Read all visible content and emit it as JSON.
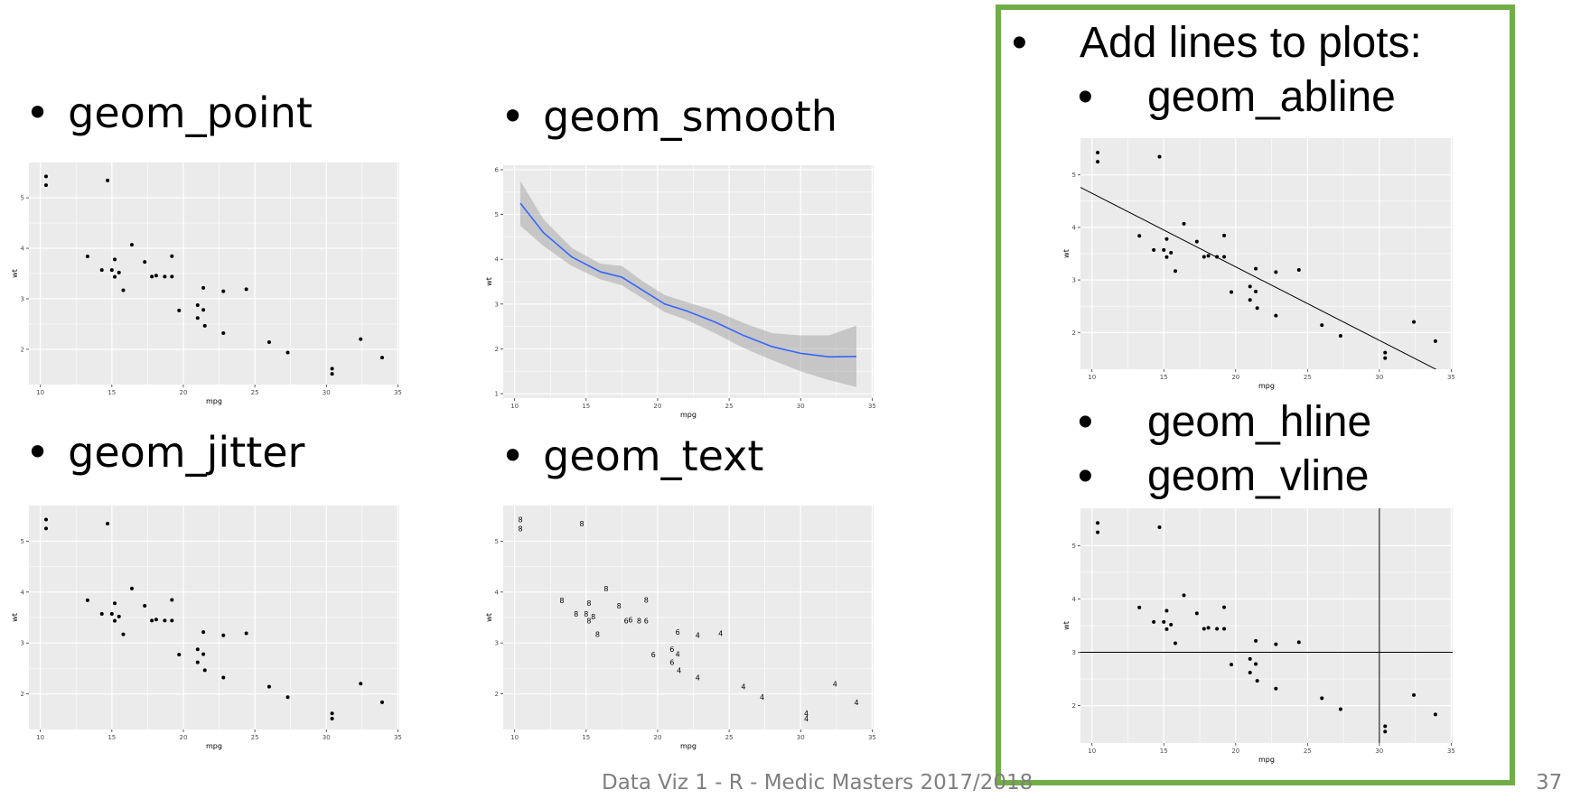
{
  "bullets": {
    "bullet_char": "•",
    "geom_point": "geom_point",
    "geom_smooth": "geom_smooth",
    "geom_jitter": "geom_jitter",
    "geom_text": "geom_text"
  },
  "box": {
    "title": "Add lines to plots:",
    "abline": "geom_abline",
    "hline": "geom_hline",
    "vline": "geom_vline"
  },
  "footer": {
    "text": "Data Viz 1 - R - Medic Masters 2017/2018",
    "page_number": "37"
  },
  "colors": {
    "panel": "#ebebeb",
    "grid": "#ffffff",
    "smooth_line": "#3366ff",
    "smooth_band": "#999999",
    "box_border": "#70ad47"
  },
  "chart_data": [
    {
      "id": "geom_point",
      "type": "scatter",
      "xlabel": "mpg",
      "ylabel": "wt",
      "xlim": [
        9.2,
        35.1
      ],
      "ylim": [
        1.3,
        5.7
      ],
      "xticks": [
        10,
        15,
        20,
        25,
        30,
        35
      ],
      "yticks": [
        2,
        3,
        4,
        5
      ],
      "points": [
        [
          21.0,
          2.62
        ],
        [
          21.0,
          2.875
        ],
        [
          22.8,
          2.32
        ],
        [
          21.4,
          3.215
        ],
        [
          18.7,
          3.44
        ],
        [
          18.1,
          3.46
        ],
        [
          14.3,
          3.57
        ],
        [
          24.4,
          3.19
        ],
        [
          22.8,
          3.15
        ],
        [
          19.2,
          3.44
        ],
        [
          17.8,
          3.44
        ],
        [
          16.4,
          4.07
        ],
        [
          17.3,
          3.73
        ],
        [
          15.2,
          3.78
        ],
        [
          10.4,
          5.25
        ],
        [
          10.4,
          5.424
        ],
        [
          14.7,
          5.345
        ],
        [
          32.4,
          2.2
        ],
        [
          30.4,
          1.615
        ],
        [
          33.9,
          1.835
        ],
        [
          21.5,
          2.465
        ],
        [
          15.5,
          3.52
        ],
        [
          15.2,
          3.435
        ],
        [
          13.3,
          3.84
        ],
        [
          19.2,
          3.845
        ],
        [
          27.3,
          1.935
        ],
        [
          26.0,
          2.14
        ],
        [
          30.4,
          1.513
        ],
        [
          15.8,
          3.17
        ],
        [
          19.7,
          2.77
        ],
        [
          15.0,
          3.57
        ],
        [
          21.4,
          2.78
        ]
      ]
    },
    {
      "id": "geom_smooth",
      "type": "line",
      "xlabel": "mpg",
      "ylabel": "wt",
      "xlim": [
        9.2,
        35.1
      ],
      "ylim": [
        0.9,
        6.1
      ],
      "xticks": [
        10,
        15,
        20,
        25,
        30,
        35
      ],
      "yticks": [
        1,
        2,
        3,
        4,
        5,
        6
      ],
      "series": [
        {
          "x": [
            10.4,
            12,
            14,
            16,
            17.5,
            19,
            20.5,
            22,
            24,
            26,
            28,
            30,
            32,
            33.9
          ],
          "y": [
            5.25,
            4.6,
            4.05,
            3.72,
            3.6,
            3.3,
            3.0,
            2.85,
            2.6,
            2.3,
            2.05,
            1.9,
            1.82,
            1.83
          ],
          "lower": [
            4.75,
            4.3,
            3.85,
            3.55,
            3.42,
            3.12,
            2.82,
            2.65,
            2.35,
            2.02,
            1.75,
            1.5,
            1.3,
            1.15
          ],
          "upper": [
            5.75,
            4.9,
            4.25,
            3.9,
            3.85,
            3.5,
            3.2,
            3.05,
            2.85,
            2.58,
            2.35,
            2.3,
            2.3,
            2.52
          ]
        }
      ]
    },
    {
      "id": "geom_jitter",
      "type": "scatter",
      "xlabel": "mpg",
      "ylabel": "wt",
      "xlim": [
        9.2,
        35.1
      ],
      "ylim": [
        1.3,
        5.7
      ],
      "xticks": [
        10,
        15,
        20,
        25,
        30,
        35
      ],
      "yticks": [
        2,
        3,
        4,
        5
      ],
      "points": [
        [
          21.0,
          2.62
        ],
        [
          21.0,
          2.875
        ],
        [
          22.8,
          2.32
        ],
        [
          21.4,
          3.215
        ],
        [
          18.7,
          3.44
        ],
        [
          18.1,
          3.46
        ],
        [
          14.3,
          3.57
        ],
        [
          24.4,
          3.19
        ],
        [
          22.8,
          3.15
        ],
        [
          19.2,
          3.44
        ],
        [
          17.8,
          3.44
        ],
        [
          16.4,
          4.07
        ],
        [
          17.3,
          3.73
        ],
        [
          15.2,
          3.78
        ],
        [
          10.4,
          5.25
        ],
        [
          10.4,
          5.424
        ],
        [
          14.7,
          5.345
        ],
        [
          32.4,
          2.2
        ],
        [
          30.4,
          1.615
        ],
        [
          33.9,
          1.835
        ],
        [
          21.5,
          2.465
        ],
        [
          15.5,
          3.52
        ],
        [
          15.2,
          3.435
        ],
        [
          13.3,
          3.84
        ],
        [
          19.2,
          3.845
        ],
        [
          27.3,
          1.935
        ],
        [
          26.0,
          2.14
        ],
        [
          30.4,
          1.513
        ],
        [
          15.8,
          3.17
        ],
        [
          19.7,
          2.77
        ],
        [
          15.0,
          3.57
        ],
        [
          21.4,
          2.78
        ]
      ]
    },
    {
      "id": "geom_text",
      "type": "scatter",
      "xlabel": "mpg",
      "ylabel": "wt",
      "xlim": [
        9.2,
        35.1
      ],
      "ylim": [
        1.3,
        5.7
      ],
      "xticks": [
        10,
        15,
        20,
        25,
        30,
        35
      ],
      "yticks": [
        2,
        3,
        4,
        5
      ],
      "points": [
        [
          21.0,
          2.62,
          "6"
        ],
        [
          21.0,
          2.875,
          "6"
        ],
        [
          22.8,
          2.32,
          "4"
        ],
        [
          21.4,
          3.215,
          "6"
        ],
        [
          18.7,
          3.44,
          "8"
        ],
        [
          18.1,
          3.46,
          "6"
        ],
        [
          14.3,
          3.57,
          "8"
        ],
        [
          24.4,
          3.19,
          "4"
        ],
        [
          22.8,
          3.15,
          "4"
        ],
        [
          19.2,
          3.44,
          "6"
        ],
        [
          17.8,
          3.44,
          "6"
        ],
        [
          16.4,
          4.07,
          "8"
        ],
        [
          17.3,
          3.73,
          "8"
        ],
        [
          15.2,
          3.78,
          "8"
        ],
        [
          10.4,
          5.25,
          "8"
        ],
        [
          10.4,
          5.424,
          "8"
        ],
        [
          14.7,
          5.345,
          "8"
        ],
        [
          32.4,
          2.2,
          "4"
        ],
        [
          30.4,
          1.615,
          "4"
        ],
        [
          33.9,
          1.835,
          "4"
        ],
        [
          21.5,
          2.465,
          "4"
        ],
        [
          15.5,
          3.52,
          "8"
        ],
        [
          15.2,
          3.435,
          "8"
        ],
        [
          13.3,
          3.84,
          "8"
        ],
        [
          19.2,
          3.845,
          "8"
        ],
        [
          27.3,
          1.935,
          "4"
        ],
        [
          26.0,
          2.14,
          "4"
        ],
        [
          30.4,
          1.513,
          "4"
        ],
        [
          15.8,
          3.17,
          "8"
        ],
        [
          19.7,
          2.77,
          "6"
        ],
        [
          15.0,
          3.57,
          "8"
        ],
        [
          21.4,
          2.78,
          "4"
        ]
      ]
    },
    {
      "id": "geom_abline",
      "type": "scatter",
      "xlabel": "mpg",
      "ylabel": "wt",
      "xlim": [
        9.2,
        35.1
      ],
      "ylim": [
        1.3,
        5.7
      ],
      "xticks": [
        10,
        15,
        20,
        25,
        30,
        35
      ],
      "yticks": [
        2,
        3,
        4,
        5
      ],
      "abline": {
        "intercept": 6.05,
        "slope": -0.14
      },
      "points": [
        [
          21.0,
          2.62
        ],
        [
          21.0,
          2.875
        ],
        [
          22.8,
          2.32
        ],
        [
          21.4,
          3.215
        ],
        [
          18.7,
          3.44
        ],
        [
          18.1,
          3.46
        ],
        [
          14.3,
          3.57
        ],
        [
          24.4,
          3.19
        ],
        [
          22.8,
          3.15
        ],
        [
          19.2,
          3.44
        ],
        [
          17.8,
          3.44
        ],
        [
          16.4,
          4.07
        ],
        [
          17.3,
          3.73
        ],
        [
          15.2,
          3.78
        ],
        [
          10.4,
          5.25
        ],
        [
          10.4,
          5.424
        ],
        [
          14.7,
          5.345
        ],
        [
          32.4,
          2.2
        ],
        [
          30.4,
          1.615
        ],
        [
          33.9,
          1.835
        ],
        [
          21.5,
          2.465
        ],
        [
          15.5,
          3.52
        ],
        [
          15.2,
          3.435
        ],
        [
          13.3,
          3.84
        ],
        [
          19.2,
          3.845
        ],
        [
          27.3,
          1.935
        ],
        [
          26.0,
          2.14
        ],
        [
          30.4,
          1.513
        ],
        [
          15.8,
          3.17
        ],
        [
          19.7,
          2.77
        ],
        [
          15.0,
          3.57
        ],
        [
          21.4,
          2.78
        ]
      ]
    },
    {
      "id": "geom_hline_vline",
      "type": "scatter",
      "xlabel": "mpg",
      "ylabel": "wt",
      "xlim": [
        9.2,
        35.1
      ],
      "ylim": [
        1.3,
        5.7
      ],
      "xticks": [
        10,
        15,
        20,
        25,
        30,
        35
      ],
      "yticks": [
        2,
        3,
        4,
        5
      ],
      "hline": 3,
      "vline": 30,
      "points": [
        [
          21.0,
          2.62
        ],
        [
          21.0,
          2.875
        ],
        [
          22.8,
          2.32
        ],
        [
          21.4,
          3.215
        ],
        [
          18.7,
          3.44
        ],
        [
          18.1,
          3.46
        ],
        [
          14.3,
          3.57
        ],
        [
          24.4,
          3.19
        ],
        [
          22.8,
          3.15
        ],
        [
          19.2,
          3.44
        ],
        [
          17.8,
          3.44
        ],
        [
          16.4,
          4.07
        ],
        [
          17.3,
          3.73
        ],
        [
          15.2,
          3.78
        ],
        [
          10.4,
          5.25
        ],
        [
          10.4,
          5.424
        ],
        [
          14.7,
          5.345
        ],
        [
          32.4,
          2.2
        ],
        [
          30.4,
          1.615
        ],
        [
          33.9,
          1.835
        ],
        [
          21.5,
          2.465
        ],
        [
          15.5,
          3.52
        ],
        [
          15.2,
          3.435
        ],
        [
          13.3,
          3.84
        ],
        [
          19.2,
          3.845
        ],
        [
          27.3,
          1.935
        ],
        [
          26.0,
          2.14
        ],
        [
          30.4,
          1.513
        ],
        [
          15.8,
          3.17
        ],
        [
          19.7,
          2.77
        ],
        [
          15.0,
          3.57
        ],
        [
          21.4,
          2.78
        ]
      ]
    }
  ]
}
